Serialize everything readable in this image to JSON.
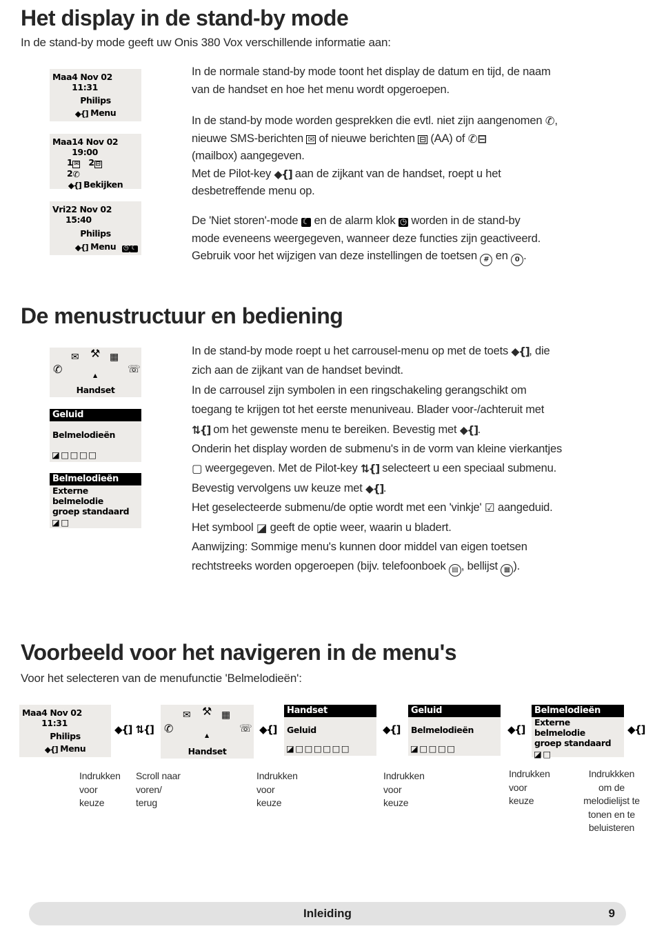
{
  "colors": {
    "lcd_bg": "#edebe8",
    "lcd_header_bg": "#000000",
    "footer_bg": "#e2e2e2",
    "text": "#2a2a2a"
  },
  "icons": {
    "pilot-key": {
      "glyph": "◆{]",
      "style": "key"
    },
    "scroll-key": {
      "glyph": "⇅{]",
      "style": "key"
    },
    "missed-call": {
      "glyph": "✆",
      "style": "plain-bold"
    },
    "sms": {
      "glyph": "✉",
      "style": "boxed"
    },
    "message": {
      "glyph": "⊟",
      "style": "boxed"
    },
    "mailbox": {
      "glyph": "✆⊟",
      "style": "plain-bold"
    },
    "dnd-moon": {
      "glyph": "☾",
      "style": "boxed-dark"
    },
    "alarm-clock": {
      "glyph": "◷",
      "style": "boxed-dark"
    },
    "submenu-square": {
      "glyph": "▢",
      "style": "plain-bold"
    },
    "check-square": {
      "glyph": "☑",
      "style": "plain-bold"
    },
    "browse-square": {
      "glyph": "◪",
      "style": "plain-bold"
    },
    "empty-square": {
      "glyph": "□",
      "style": "plain-bold"
    },
    "hash-key": {
      "glyph": "#",
      "style": "circle"
    },
    "zero-key": {
      "glyph": "0",
      "style": "circle"
    },
    "phonebook-key": {
      "glyph": "▤",
      "style": "circle"
    },
    "calllist-key": {
      "glyph": "▦",
      "style": "circle"
    },
    "carousel-handset": {
      "glyph": "✆",
      "style": "plain-bold"
    },
    "carousel-sms": {
      "glyph": "✉",
      "style": "plain-bold"
    },
    "carousel-tools": {
      "glyph": "⚒",
      "style": "plain-bold"
    },
    "carousel-answering": {
      "glyph": "▦",
      "style": "plain-bold"
    },
    "carousel-phone": {
      "glyph": "☏",
      "style": "plain-bold"
    },
    "carousel-up": {
      "glyph": "▲",
      "style": "plain-bold"
    }
  },
  "section1": {
    "title": "Het display in de stand-by mode",
    "intro": "In de stand-by mode geeft uw Onis 380 Vox verschillende informatie aan:",
    "p1": "In de normale stand-by mode toont het display de datum en tijd, de naam\nvan de handset en hoe het menu wordt opgeroepen.",
    "p2": "In de stand-by mode worden gesprekken die evtl. niet zijn aangenomen [[missed-call]],\nnieuwe SMS-berichten [[sms]] of nieuwe berichten [[message]] (AA) of [[mailbox]]\n(mailbox) aangegeven.\nMet de Pilot-key [[pilot-key]] aan de zijkant van de handset, roept u het\ndesbetreffende menu op.",
    "p3": "De 'Niet storen'-mode [[dnd-moon]] en de alarm klok [[alarm-clock]] worden in de stand-by\nmode eveneens weergegeven, wanneer deze functies zijn geactiveerd.\nGebruik voor het wijzigen van deze instellingen de toetsen [[hash-key]] en [[zero-key]]."
  },
  "section2": {
    "title": "De menustructuur en bediening",
    "paragraph": "In de stand-by mode roept u het carrousel-menu op met de toets [[pilot-key]], die\nzich aan de zijkant van de handset bevindt.\nIn de carrousel zijn symbolen in een ringschakeling gerangschikt om\ntoegang te krijgen tot het eerste menuniveau. Blader voor-/achteruit met\n[[scroll-key]] om het gewenste menu te bereiken. Bevestig met [[pilot-key]].\nOnderin het display worden de submenu's in de vorm van kleine vierkantjes\n[[submenu-square]] weergegeven. Met de Pilot-key [[scroll-key]] selecteert u een speciaal submenu.\nBevestig vervolgens uw keuze met [[pilot-key]].\nHet geselecteerde submenu/de optie wordt met een 'vinkje' [[check-square]] aangeduid.\nHet symbool [[browse-square]] geeft de optie weer, waarin u bladert.\nAanwijzing: Sommige menu's kunnen door middel van eigen toetsen\nrechtstreeks worden opgeroepen (bijv. telefoonboek [[phonebook-key]], bellijst [[calllist-key]])."
  },
  "section3": {
    "title": "Voorbeeld voor het navigeren in de menu's",
    "intro": "Voor het selecteren van de menufunctie 'Belmelodieën':",
    "arrow_with_scroll": "[[pilot-key]] [[scroll-key]]",
    "arrow": "[[pilot-key]]",
    "captions": [
      "Indrukken\nvoor\nkeuze",
      "Scroll naar\nvoren/\nterug",
      "Indrukken\nvoor\nkeuze",
      "Indrukken\nvoor\nkeuze",
      "Indrukken\nvoor\nkeuze",
      "Indrukkken\nom de\nmelodielijst te\ntonen en te\nbeluisteren"
    ]
  },
  "screens": {
    "standby_normal": {
      "day": "Maa",
      "datetime": "4 Nov 02 11:31",
      "name": "Philips",
      "softkey": "[[pilot-key]] Menu"
    },
    "standby_events": {
      "day": "Maa",
      "datetime": "14 Nov 02 19:00",
      "events_row1": "1[[sms]]   2[[message]]",
      "events_row2": "2[[missed-call]]",
      "softkey": "[[pilot-key]] Bekijken"
    },
    "standby_status": {
      "day": "Vri",
      "datetime": "22 Nov 02 15:40",
      "name": "Philips",
      "softkey": "[[pilot-key]] Menu",
      "status": "[[alarm-clock]][[dnd-moon]]"
    },
    "carousel": {
      "label": "Handset"
    },
    "menu_handset": {
      "header": "Handset",
      "item": "Geluid",
      "squares": "[[browse-square]][[empty-square]][[empty-square]][[empty-square]][[empty-square]][[empty-square]][[empty-square]]"
    },
    "menu_geluid": {
      "header": "Geluid",
      "item": "Belmelodieën",
      "squares": "[[browse-square]][[empty-square]][[empty-square]][[empty-square]][[empty-square]]"
    },
    "menu_belmelodieen": {
      "header": "Belmelodieën",
      "line1": "Externe belmelodie",
      "line2": "groep standaard",
      "squares": "[[browse-square]][[empty-square]]"
    }
  },
  "footer": {
    "label": "Inleiding",
    "page_number": "9"
  }
}
